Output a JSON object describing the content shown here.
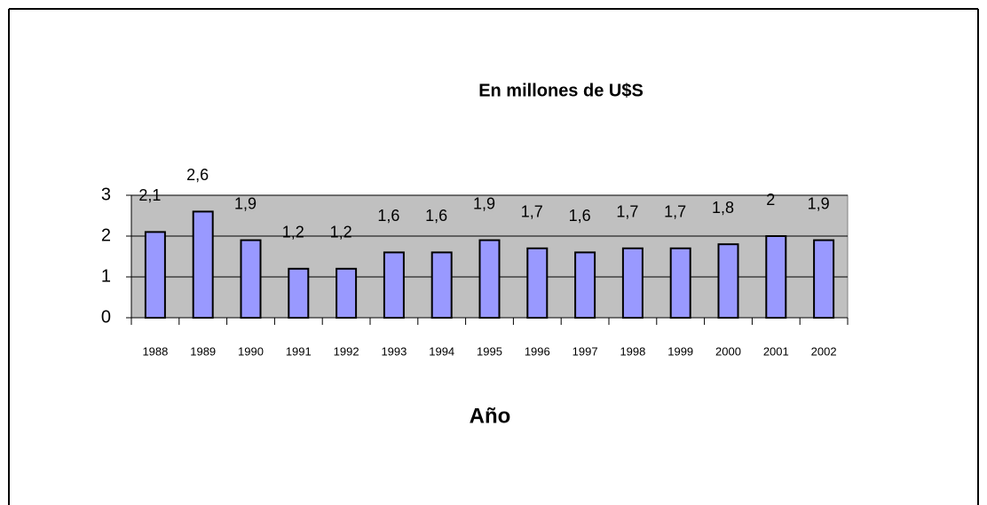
{
  "chart_data": {
    "type": "bar",
    "title": "En millones de U$S",
    "x_label": "Año",
    "categories": [
      "1988",
      "1989",
      "1990",
      "1991",
      "1992",
      "1993",
      "1994",
      "1995",
      "1996",
      "1997",
      "1998",
      "1999",
      "2000",
      "2001",
      "2002"
    ],
    "values": [
      2.1,
      2.6,
      1.9,
      1.2,
      1.2,
      1.6,
      1.6,
      1.9,
      1.7,
      1.6,
      1.7,
      1.7,
      1.8,
      2,
      1.9
    ],
    "value_labels": [
      "2,1",
      "2,6",
      "1,9",
      "1,2",
      "1,2",
      "1,6",
      "1,6",
      "1,9",
      "1,7",
      "1,6",
      "1,7",
      "1,7",
      "1,8",
      "2",
      "1,9"
    ],
    "color": "#9999ff",
    "ylim": [
      0,
      3
    ],
    "yticks": [
      0,
      1,
      2,
      3
    ],
    "grid": true
  }
}
